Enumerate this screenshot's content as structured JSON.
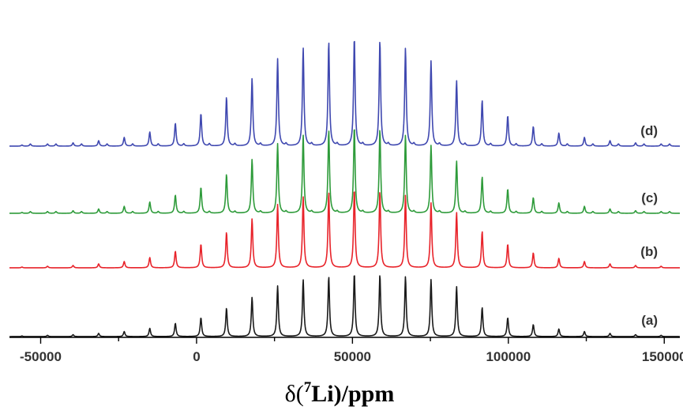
{
  "chart_data": {
    "type": "line",
    "xlabel": {
      "prefix": "δ(",
      "superscript": "7",
      "element": "Li",
      "suffix": ")/ppm"
    },
    "xlim": [
      -60000,
      155000
    ],
    "xticks": [
      -50000,
      0,
      50000,
      100000,
      150000
    ],
    "xtick_labels": [
      "-50000",
      "0",
      "50000",
      "100000",
      "150000"
    ],
    "grid": false,
    "legend": "none",
    "spinning_sideband_spacing": 8200,
    "series": [
      {
        "name": "(a)",
        "color": "#1a1a1a",
        "peak_positions": [
          -56000,
          -47800,
          -39600,
          -31400,
          -23200,
          -15000,
          -6800,
          1400,
          9600,
          17800,
          26000,
          34200,
          42400,
          50600,
          58800,
          67000,
          75200,
          83400,
          91600,
          99800,
          108000,
          116200,
          124400,
          132600,
          140800,
          149000
        ],
        "peak_intensities": [
          0.01,
          0.02,
          0.03,
          0.05,
          0.08,
          0.13,
          0.21,
          0.3,
          0.45,
          0.62,
          0.8,
          0.9,
          0.95,
          1.0,
          0.98,
          0.95,
          0.9,
          0.79,
          0.46,
          0.3,
          0.19,
          0.12,
          0.08,
          0.05,
          0.03,
          0.02
        ]
      },
      {
        "name": "(b)",
        "color": "#e8232a",
        "peak_positions": [
          -56000,
          -47800,
          -39600,
          -31400,
          -23200,
          -15000,
          -6800,
          1400,
          9600,
          17800,
          26000,
          34200,
          42400,
          50600,
          58800,
          67000,
          75200,
          83400,
          91600,
          99800,
          108000,
          116200,
          124400,
          132600,
          140800,
          149000
        ],
        "peak_intensities": [
          0.01,
          0.02,
          0.03,
          0.05,
          0.08,
          0.13,
          0.21,
          0.3,
          0.45,
          0.62,
          0.8,
          0.9,
          0.96,
          1.0,
          0.97,
          0.92,
          0.82,
          0.7,
          0.46,
          0.3,
          0.19,
          0.12,
          0.08,
          0.05,
          0.03,
          0.02
        ]
      },
      {
        "name": "(c)",
        "color": "#2e9b3a",
        "peak_positions": [
          -56000,
          -47800,
          -39600,
          -31400,
          -23200,
          -15000,
          -6800,
          1400,
          9600,
          17800,
          26000,
          34200,
          42400,
          50600,
          58800,
          67000,
          75200,
          83400,
          91600,
          99800,
          108000,
          116200,
          124400,
          132600,
          140800,
          149000
        ],
        "peak_intensities": [
          0.01,
          0.02,
          0.03,
          0.05,
          0.08,
          0.13,
          0.21,
          0.3,
          0.45,
          0.62,
          0.8,
          0.9,
          0.96,
          1.0,
          0.97,
          0.9,
          0.78,
          0.6,
          0.42,
          0.28,
          0.18,
          0.12,
          0.08,
          0.05,
          0.03,
          0.02
        ]
      },
      {
        "name": "(d)",
        "color": "#3f48b0",
        "peak_positions": [
          -56000,
          -47800,
          -39600,
          -31400,
          -23200,
          -15000,
          -6800,
          1400,
          9600,
          17800,
          26000,
          34200,
          42400,
          50600,
          58800,
          67000,
          75200,
          83400,
          91600,
          99800,
          108000,
          116200,
          124400,
          132600,
          140800,
          149000
        ],
        "peak_intensities": [
          0.01,
          0.02,
          0.03,
          0.05,
          0.08,
          0.13,
          0.21,
          0.3,
          0.45,
          0.62,
          0.8,
          0.9,
          0.96,
          1.0,
          0.97,
          0.9,
          0.78,
          0.6,
          0.42,
          0.28,
          0.18,
          0.12,
          0.08,
          0.05,
          0.03,
          0.02
        ]
      }
    ]
  }
}
